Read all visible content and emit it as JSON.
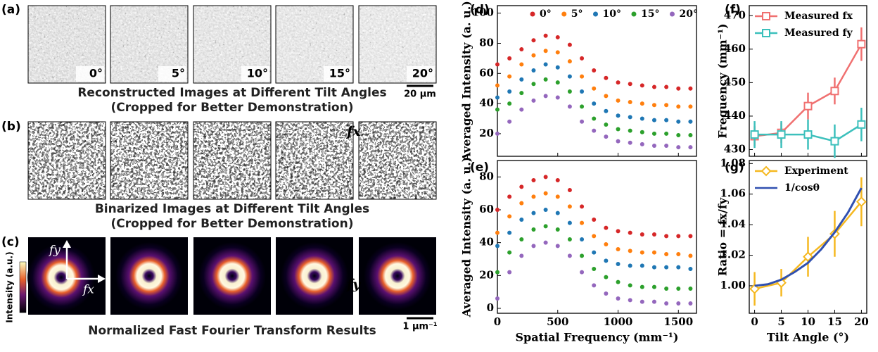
{
  "panels": {
    "a": {
      "label": "(a)",
      "angles": [
        "0°",
        "5°",
        "10°",
        "15°",
        "20°"
      ],
      "caption": [
        "Reconstructed Images at Different Tilt Angles",
        "(Cropped for Better Demonstration)"
      ],
      "scalebar": "20 μm"
    },
    "b": {
      "label": "(b)",
      "caption": [
        "Binarized Images at Different Tilt Angles",
        "(Cropped for Better Demonstration)"
      ]
    },
    "c": {
      "label": "(c)",
      "colorbar": "Intensity (a.u.)",
      "axis_y": "fy",
      "axis_x": "fx",
      "caption": "Normalized Fast Fourier Transform Results",
      "scalebar": "1 μm⁻¹"
    }
  },
  "chart_data": [
    {
      "type": "scatter",
      "panel_label": "(d)",
      "ylabel": "Averaged Intensity (a. u.)",
      "annotation": "fx",
      "x": [
        0,
        100,
        200,
        300,
        400,
        500,
        600,
        700,
        800,
        900,
        1000,
        1100,
        1200,
        1300,
        1400,
        1500,
        1600
      ],
      "xlim": [
        0,
        1650
      ],
      "xticks": [
        0,
        500,
        1000,
        1500
      ],
      "ylim": [
        5,
        105
      ],
      "yticks": [
        20,
        40,
        60,
        80,
        100
      ],
      "series": [
        {
          "name": "0°",
          "color": "#d62728",
          "values": [
            66,
            70,
            76,
            82,
            85,
            84,
            79,
            70,
            62,
            57,
            54,
            53,
            52,
            51,
            51,
            50,
            50
          ]
        },
        {
          "name": "5°",
          "color": "#ff7f0e",
          "values": [
            52,
            58,
            66,
            72,
            75,
            74,
            68,
            58,
            50,
            45,
            42,
            41,
            40,
            39,
            39,
            38,
            38
          ]
        },
        {
          "name": "10°",
          "color": "#1f77b4",
          "values": [
            44,
            48,
            56,
            62,
            66,
            64,
            58,
            48,
            40,
            35,
            32,
            31,
            30,
            29,
            29,
            28,
            28
          ]
        },
        {
          "name": "15°",
          "color": "#2ca02c",
          "values": [
            36,
            40,
            47,
            53,
            56,
            54,
            48,
            38,
            30,
            26,
            23,
            22,
            21,
            20,
            20,
            19,
            19
          ]
        },
        {
          "name": "20°",
          "color": "#9467bd",
          "values": [
            20,
            28,
            36,
            42,
            45,
            44,
            38,
            28,
            22,
            18,
            15,
            14,
            13,
            12,
            12,
            11,
            11
          ]
        }
      ]
    },
    {
      "type": "scatter",
      "panel_label": "(e)",
      "ylabel": "Averaged Intensity (a. u.)",
      "xlabel": "Spatial Frequency (mm⁻¹)",
      "annotation": "fy",
      "x": [
        0,
        100,
        200,
        300,
        400,
        500,
        600,
        700,
        800,
        900,
        1000,
        1100,
        1200,
        1300,
        1400,
        1500,
        1600
      ],
      "xlim": [
        0,
        1650
      ],
      "xticks": [
        0,
        500,
        1000,
        1500
      ],
      "ylim": [
        -3,
        90
      ],
      "yticks": [
        0,
        20,
        40,
        60,
        80
      ],
      "series": [
        {
          "color": "#d62728",
          "values": [
            60,
            68,
            74,
            78,
            80,
            78,
            72,
            62,
            54,
            49,
            47,
            46,
            45,
            45,
            44,
            44,
            44
          ]
        },
        {
          "color": "#ff7f0e",
          "values": [
            46,
            56,
            64,
            68,
            70,
            68,
            62,
            52,
            44,
            39,
            36,
            35,
            34,
            34,
            33,
            33,
            32
          ]
        },
        {
          "color": "#1f77b4",
          "values": [
            38,
            46,
            54,
            58,
            60,
            58,
            52,
            42,
            34,
            29,
            27,
            26,
            26,
            25,
            25,
            25,
            24
          ]
        },
        {
          "color": "#2ca02c",
          "values": [
            22,
            34,
            42,
            48,
            50,
            48,
            42,
            32,
            24,
            19,
            16,
            14,
            13,
            13,
            12,
            12,
            12
          ]
        },
        {
          "color": "#9467bd",
          "values": [
            6,
            22,
            32,
            38,
            40,
            38,
            32,
            22,
            14,
            9,
            6,
            5,
            4,
            4,
            3,
            3,
            3
          ]
        }
      ]
    },
    {
      "type": "line",
      "panel_label": "(f)",
      "ylabel": "Frequency (mm⁻¹)",
      "x": [
        0,
        5,
        10,
        15,
        20
      ],
      "xlim": [
        -1,
        21
      ],
      "xticks": [
        0,
        5,
        10,
        15,
        20
      ],
      "ylim": [
        428,
        473
      ],
      "yticks": [
        430,
        440,
        450,
        460,
        470
      ],
      "series": [
        {
          "name": "Measured fx",
          "color": "#f07070",
          "marker": "square",
          "values": [
            434,
            435,
            443,
            447.5,
            461.5
          ],
          "errors": [
            3,
            3,
            4,
            4,
            5
          ]
        },
        {
          "name": "Measured fy",
          "color": "#3cc0bc",
          "marker": "square",
          "values": [
            434.5,
            434.5,
            434.5,
            432.5,
            437.5
          ],
          "errors": [
            4,
            4,
            4.5,
            5,
            5
          ]
        }
      ]
    },
    {
      "type": "line",
      "panel_label": "(g)",
      "ylabel": "Ratio = fx/fy",
      "xlabel": "Tilt Angle (°)",
      "x": [
        0,
        5,
        10,
        15,
        20
      ],
      "xlim": [
        -1,
        21
      ],
      "xticks": [
        0,
        5,
        10,
        15,
        20
      ],
      "ylim": [
        0.982,
        1.082
      ],
      "yticks": [
        {
          "value": 1.0,
          "label": "1.00"
        },
        {
          "value": 1.02,
          "label": "1.02"
        },
        {
          "value": 1.04,
          "label": "1.04"
        },
        {
          "value": 1.06,
          "label": "1.06"
        },
        {
          "value": 1.08,
          "label": "1.08"
        }
      ],
      "series": [
        {
          "name": "Experiment",
          "color": "#f5b820",
          "marker": "diamond",
          "values": [
            0.998,
            1.002,
            1.019,
            1.034,
            1.055
          ],
          "errors": [
            0.011,
            0.009,
            0.013,
            0.015,
            0.016
          ]
        },
        {
          "name": "1/cosθ",
          "color": "#3050b0",
          "x": [
            0,
            2.5,
            5,
            7.5,
            10,
            12.5,
            15,
            17.5,
            20
          ],
          "values": [
            1.0,
            1.001,
            1.004,
            1.009,
            1.015,
            1.024,
            1.035,
            1.048,
            1.064
          ]
        }
      ]
    }
  ]
}
